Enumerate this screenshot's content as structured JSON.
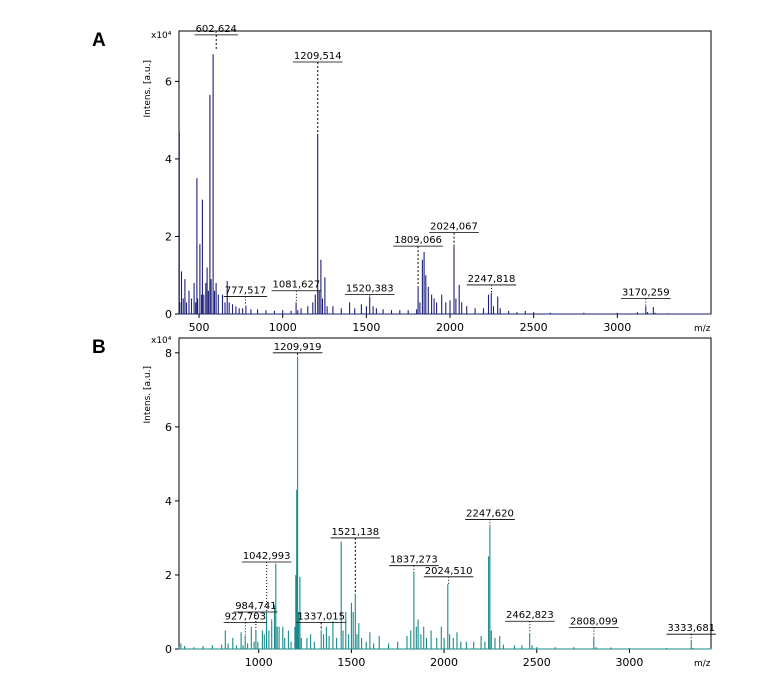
{
  "chart_data": [
    {
      "panel": "A",
      "type": "line",
      "color": "#1f1f7a",
      "ylabel": "Intens. [a.u.]",
      "yexp": "x10⁴",
      "xlabel": "m/z",
      "xlim": [
        380,
        3560
      ],
      "ylim": [
        0,
        7.3
      ],
      "xticks": [
        500,
        1000,
        1500,
        2000,
        2500,
        3000
      ],
      "yticks": [
        0,
        2,
        4,
        6
      ],
      "spectrum": [
        [
          380,
          0.05
        ],
        [
          382,
          4.7
        ],
        [
          385,
          0.3
        ],
        [
          395,
          1.1
        ],
        [
          405,
          0.4
        ],
        [
          415,
          0.9
        ],
        [
          425,
          0.3
        ],
        [
          440,
          0.6
        ],
        [
          455,
          0.4
        ],
        [
          470,
          0.8
        ],
        [
          480,
          0.3
        ],
        [
          487,
          3.5
        ],
        [
          492,
          0.4
        ],
        [
          505,
          1.8
        ],
        [
          515,
          0.5
        ],
        [
          520,
          2.95
        ],
        [
          528,
          0.5
        ],
        [
          540,
          0.8
        ],
        [
          548,
          1.2
        ],
        [
          556,
          0.6
        ],
        [
          565,
          5.65
        ],
        [
          572,
          0.9
        ],
        [
          584,
          6.7
        ],
        [
          592,
          0.6
        ],
        [
          602,
          0.8
        ],
        [
          615,
          0.5
        ],
        [
          640,
          0.5
        ],
        [
          655,
          0.3
        ],
        [
          668,
          0.85
        ],
        [
          680,
          0.3
        ],
        [
          700,
          0.25
        ],
        [
          720,
          0.2
        ],
        [
          740,
          0.15
        ],
        [
          760,
          0.15
        ],
        [
          780,
          0.22
        ],
        [
          810,
          0.12
        ],
        [
          850,
          0.12
        ],
        [
          900,
          0.1
        ],
        [
          950,
          0.08
        ],
        [
          1000,
          0.1
        ],
        [
          1050,
          0.08
        ],
        [
          1080,
          0.3
        ],
        [
          1090,
          0.1
        ],
        [
          1110,
          0.15
        ],
        [
          1150,
          0.2
        ],
        [
          1180,
          0.3
        ],
        [
          1195,
          0.5
        ],
        [
          1209,
          4.65
        ],
        [
          1218,
          0.6
        ],
        [
          1228,
          1.4
        ],
        [
          1238,
          0.4
        ],
        [
          1252,
          0.95
        ],
        [
          1265,
          0.2
        ],
        [
          1300,
          0.2
        ],
        [
          1350,
          0.15
        ],
        [
          1400,
          0.3
        ],
        [
          1430,
          0.15
        ],
        [
          1470,
          0.25
        ],
        [
          1500,
          0.2
        ],
        [
          1520,
          0.45
        ],
        [
          1540,
          0.2
        ],
        [
          1560,
          0.15
        ],
        [
          1600,
          0.12
        ],
        [
          1650,
          0.1
        ],
        [
          1700,
          0.1
        ],
        [
          1750,
          0.1
        ],
        [
          1800,
          0.12
        ],
        [
          1809,
          0.7
        ],
        [
          1820,
          0.3
        ],
        [
          1835,
          1.4
        ],
        [
          1845,
          1.6
        ],
        [
          1855,
          1.0
        ],
        [
          1870,
          0.7
        ],
        [
          1890,
          0.5
        ],
        [
          1905,
          0.4
        ],
        [
          1920,
          0.3
        ],
        [
          1950,
          0.5
        ],
        [
          1975,
          0.3
        ],
        [
          2000,
          0.35
        ],
        [
          2024,
          1.75
        ],
        [
          2035,
          0.4
        ],
        [
          2055,
          0.75
        ],
        [
          2070,
          0.3
        ],
        [
          2100,
          0.2
        ],
        [
          2150,
          0.15
        ],
        [
          2200,
          0.15
        ],
        [
          2230,
          0.5
        ],
        [
          2247,
          0.55
        ],
        [
          2260,
          0.2
        ],
        [
          2285,
          0.45
        ],
        [
          2300,
          0.15
        ],
        [
          2350,
          0.08
        ],
        [
          2400,
          0.05
        ],
        [
          2450,
          0.08
        ],
        [
          2500,
          0.05
        ],
        [
          2600,
          0.03
        ],
        [
          2800,
          0.03
        ],
        [
          3000,
          0.03
        ],
        [
          3120,
          0.05
        ],
        [
          3170,
          0.2
        ],
        [
          3180,
          0.05
        ],
        [
          3215,
          0.18
        ],
        [
          3225,
          0.03
        ],
        [
          3300,
          0.02
        ],
        [
          3560,
          0.01
        ]
      ],
      "peaks": [
        {
          "mz": 602.624,
          "label": "602,624",
          "y": 6.8,
          "label_y": 7.2,
          "style": "dash"
        },
        {
          "mz": 1209.514,
          "label": "1209,514",
          "y": 4.65,
          "label_y": 6.5,
          "style": "dash"
        },
        {
          "mz": 777.517,
          "label": "777,517",
          "y": 0.22,
          "label_y": 0.45,
          "style": "dotted"
        },
        {
          "mz": 1081.627,
          "label": "1081,627",
          "y": 0.3,
          "label_y": 0.6,
          "style": "dotted"
        },
        {
          "mz": 1520.383,
          "label": "1520,383",
          "y": 0.45,
          "label_y": 0.5,
          "style": "dotted"
        },
        {
          "mz": 1809.066,
          "label": "1809,066",
          "y": 0.7,
          "label_y": 1.75,
          "style": "dash"
        },
        {
          "mz": 2024.067,
          "label": "2024,067",
          "y": 1.75,
          "label_y": 2.1,
          "style": "dash"
        },
        {
          "mz": 2247.818,
          "label": "2247,818",
          "y": 0.55,
          "label_y": 0.75,
          "style": "dotted"
        },
        {
          "mz": 3170.259,
          "label": "3170,259",
          "y": 0.2,
          "label_y": 0.4,
          "style": "dotted"
        }
      ]
    },
    {
      "panel": "B",
      "type": "line",
      "color": "#1a8a8a",
      "ylabel": "Intens. [a.u.]",
      "yexp": "x10⁴",
      "xlabel": "m/z",
      "xlim": [
        570,
        3440
      ],
      "ylim": [
        0,
        8.4
      ],
      "xticks": [
        1000,
        1500,
        2000,
        2500,
        3000
      ],
      "yticks": [
        0,
        2,
        4,
        6,
        8
      ],
      "spectrum": [
        [
          570,
          0.05
        ],
        [
          580,
          0.15
        ],
        [
          600,
          0.08
        ],
        [
          650,
          0.05
        ],
        [
          700,
          0.08
        ],
        [
          750,
          0.1
        ],
        [
          800,
          0.12
        ],
        [
          820,
          0.5
        ],
        [
          835,
          0.15
        ],
        [
          860,
          0.3
        ],
        [
          880,
          0.1
        ],
        [
          905,
          0.45
        ],
        [
          915,
          0.1
        ],
        [
          927,
          0.35
        ],
        [
          940,
          0.15
        ],
        [
          960,
          0.6
        ],
        [
          975,
          0.2
        ],
        [
          985,
          0.5
        ],
        [
          995,
          0.2
        ],
        [
          1020,
          0.5
        ],
        [
          1030,
          0.4
        ],
        [
          1042,
          1.0
        ],
        [
          1055,
          0.5
        ],
        [
          1070,
          0.8
        ],
        [
          1085,
          1.2
        ],
        [
          1092,
          2.3
        ],
        [
          1100,
          0.6
        ],
        [
          1110,
          0.6
        ],
        [
          1130,
          0.6
        ],
        [
          1140,
          0.3
        ],
        [
          1160,
          0.5
        ],
        [
          1175,
          0.2
        ],
        [
          1195,
          0.6
        ],
        [
          1200,
          2.0
        ],
        [
          1205,
          4.3
        ],
        [
          1210,
          7.9
        ],
        [
          1215,
          1.0
        ],
        [
          1222,
          1.95
        ],
        [
          1230,
          0.3
        ],
        [
          1260,
          0.3
        ],
        [
          1280,
          0.4
        ],
        [
          1300,
          0.2
        ],
        [
          1337,
          0.5
        ],
        [
          1350,
          0.4
        ],
        [
          1365,
          0.6
        ],
        [
          1380,
          0.35
        ],
        [
          1400,
          0.75
        ],
        [
          1420,
          0.3
        ],
        [
          1445,
          2.9
        ],
        [
          1455,
          0.5
        ],
        [
          1470,
          1.0
        ],
        [
          1485,
          0.4
        ],
        [
          1500,
          1.25
        ],
        [
          1510,
          1.0
        ],
        [
          1521,
          1.5
        ],
        [
          1530,
          0.4
        ],
        [
          1540,
          0.7
        ],
        [
          1555,
          0.3
        ],
        [
          1580,
          0.2
        ],
        [
          1600,
          0.45
        ],
        [
          1620,
          0.15
        ],
        [
          1650,
          0.35
        ],
        [
          1700,
          0.15
        ],
        [
          1750,
          0.2
        ],
        [
          1800,
          0.35
        ],
        [
          1820,
          0.5
        ],
        [
          1837,
          2.05
        ],
        [
          1850,
          0.6
        ],
        [
          1860,
          0.8
        ],
        [
          1875,
          0.4
        ],
        [
          1890,
          0.6
        ],
        [
          1905,
          0.3
        ],
        [
          1930,
          0.5
        ],
        [
          1960,
          0.3
        ],
        [
          1985,
          0.6
        ],
        [
          2000,
          0.3
        ],
        [
          2020,
          1.75
        ],
        [
          2030,
          0.4
        ],
        [
          2050,
          0.3
        ],
        [
          2070,
          0.45
        ],
        [
          2090,
          0.2
        ],
        [
          2120,
          0.2
        ],
        [
          2160,
          0.2
        ],
        [
          2200,
          0.35
        ],
        [
          2220,
          0.2
        ],
        [
          2240,
          2.5
        ],
        [
          2247,
          3.3
        ],
        [
          2255,
          0.5
        ],
        [
          2275,
          0.3
        ],
        [
          2300,
          0.35
        ],
        [
          2320,
          0.12
        ],
        [
          2380,
          0.1
        ],
        [
          2420,
          0.1
        ],
        [
          2462,
          0.42
        ],
        [
          2475,
          0.1
        ],
        [
          2500,
          0.05
        ],
        [
          2600,
          0.05
        ],
        [
          2700,
          0.05
        ],
        [
          2808,
          0.32
        ],
        [
          2820,
          0.05
        ],
        [
          2900,
          0.04
        ],
        [
          3000,
          0.03
        ],
        [
          3200,
          0.03
        ],
        [
          3333,
          0.2
        ],
        [
          3345,
          0.03
        ],
        [
          3440,
          0.02
        ]
      ],
      "peaks": [
        {
          "mz": 1209.919,
          "label": "1209,919",
          "y": 7.9,
          "label_y": 8.0,
          "style": "dash"
        },
        {
          "mz": 1042.993,
          "label": "1042,993",
          "y": 1.0,
          "label_y": 2.35,
          "style": "dotted"
        },
        {
          "mz": 984.741,
          "label": "984,741",
          "y": 0.5,
          "label_y": 1.0,
          "style": "dotted"
        },
        {
          "mz": 927.703,
          "label": "927,703",
          "y": 0.35,
          "label_y": 0.72,
          "style": "dotted"
        },
        {
          "mz": 1337.015,
          "label": "1337,015",
          "y": 0.5,
          "label_y": 0.72,
          "style": "dash"
        },
        {
          "mz": 1521.138,
          "label": "1521,138",
          "y": 1.5,
          "label_y": 3.0,
          "style": "dash"
        },
        {
          "mz": 1837.273,
          "label": "1837,273",
          "y": 2.05,
          "label_y": 2.25,
          "style": "dotted"
        },
        {
          "mz": 2024.51,
          "label": "2024,510",
          "y": 1.75,
          "label_y": 1.95,
          "style": "dotted"
        },
        {
          "mz": 2247.62,
          "label": "2247,620",
          "y": 3.3,
          "label_y": 3.5,
          "style": "dotted"
        },
        {
          "mz": 2462.823,
          "label": "2462,823",
          "y": 0.42,
          "label_y": 0.75,
          "style": "dotted"
        },
        {
          "mz": 2808.099,
          "label": "2808,099",
          "y": 0.32,
          "label_y": 0.58,
          "style": "dotted"
        },
        {
          "mz": 3333.681,
          "label": "3333,681",
          "y": 0.2,
          "label_y": 0.4,
          "style": "dotted"
        }
      ]
    }
  ]
}
